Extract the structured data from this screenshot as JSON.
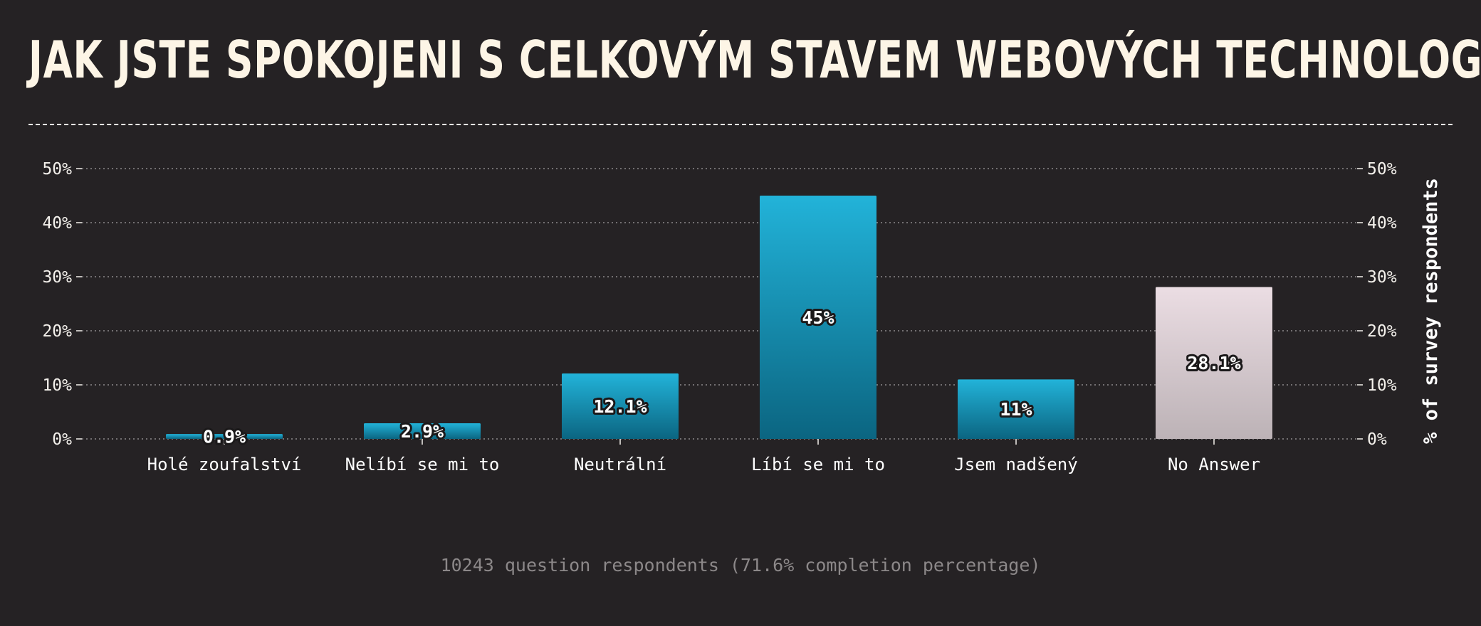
{
  "title": "JAK JSTE SPOKOJENI S CELKOVÝM STAVEM WEBOVÝCH TECHNOLOGIÍ?",
  "footer": "10243 question respondents (71.6% completion percentage)",
  "chart_data": {
    "type": "bar",
    "categories": [
      "Holé zoufalství",
      "Nelíbí se mi to",
      "Neutrální",
      "Líbí se mi to",
      "Jsem nadšený",
      "No Answer"
    ],
    "values": [
      0.9,
      2.9,
      12.1,
      45,
      11,
      28.1
    ],
    "value_labels": [
      "0.9%",
      "2.9%",
      "12.1%",
      "45%",
      "11%",
      "28.1%"
    ],
    "ylabel": "% of survey respondents",
    "ylim": [
      0,
      50
    ],
    "yticks": [
      0,
      10,
      20,
      30,
      40,
      50
    ],
    "ytick_labels": [
      "0%",
      "10%",
      "20%",
      "30%",
      "40%",
      "50%"
    ],
    "grid": true,
    "colors": {
      "bar_top": "#22b3d9",
      "bar_bottom": "#0b6581",
      "no_answer_top": "#ebdde3",
      "no_answer_bottom": "#bcb2b6",
      "grid": "#8d8a8b",
      "background": "#252224"
    }
  }
}
